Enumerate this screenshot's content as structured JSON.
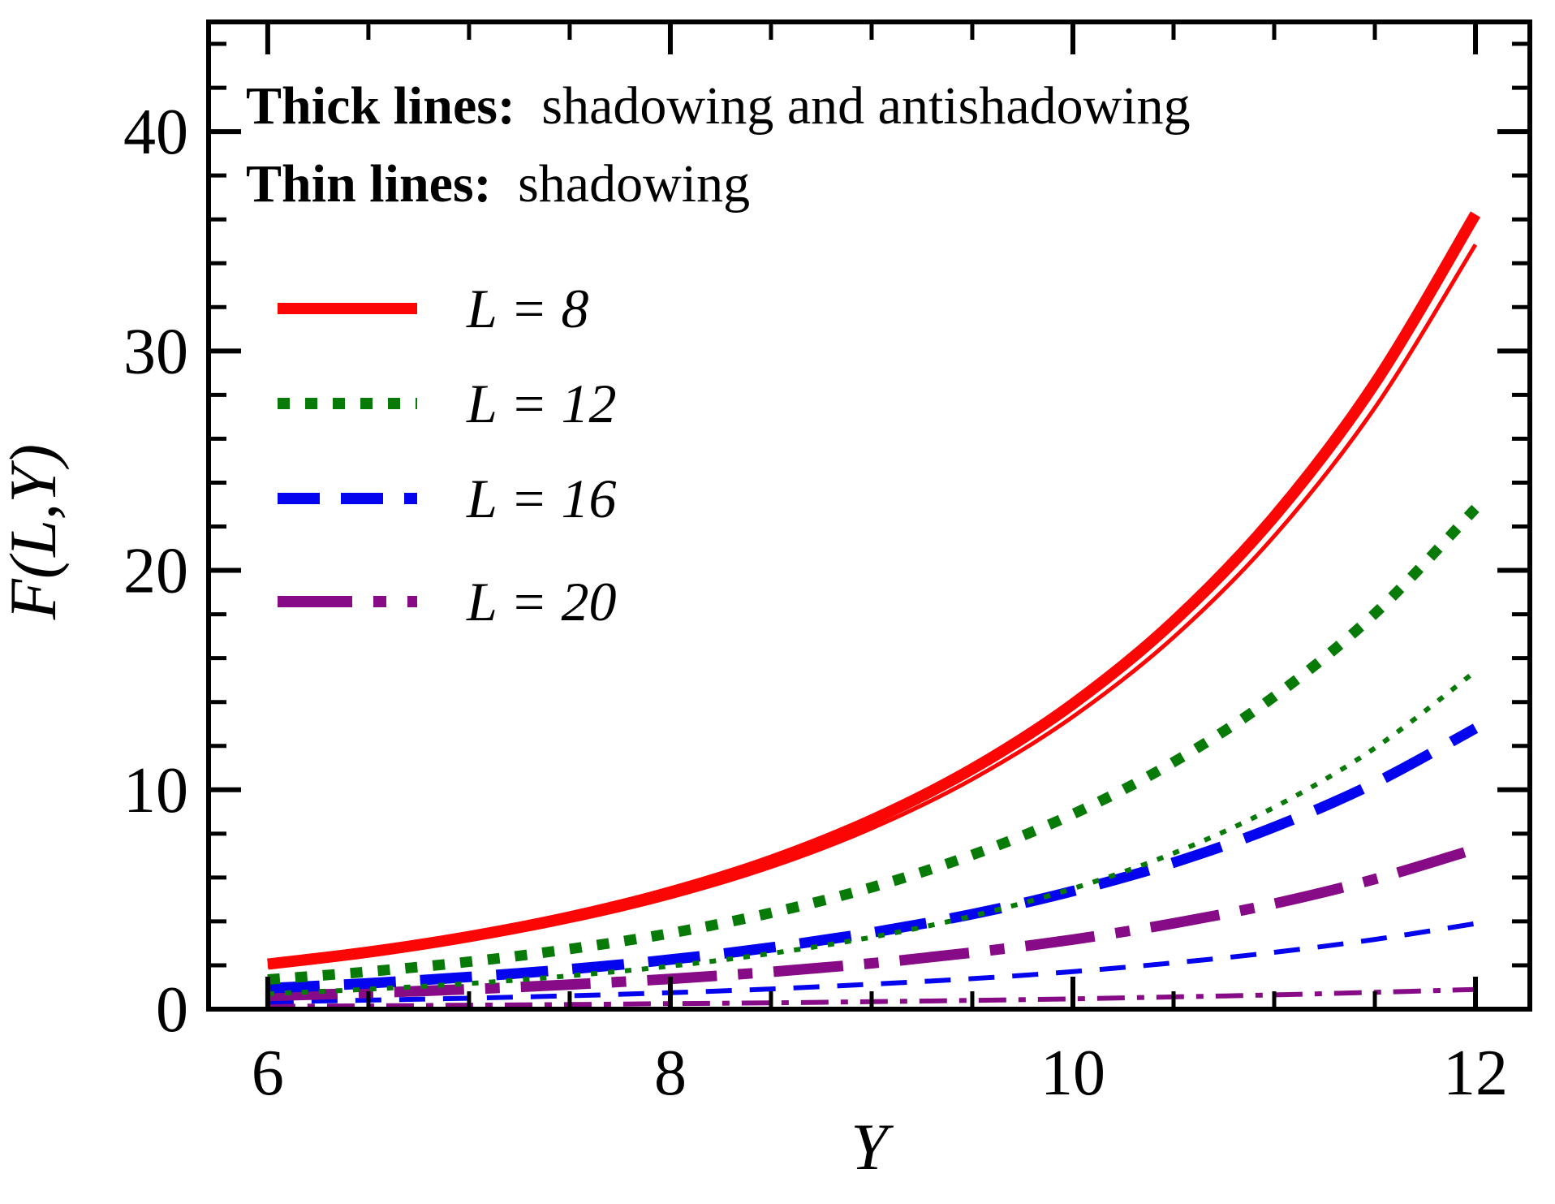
{
  "figure": {
    "annotations": {
      "line1_bold": "Thick lines:",
      "line1_rest": "shadowing and antishadowing",
      "line2_bold": "Thin lines:",
      "line2_rest": "shadowing"
    },
    "legend": {
      "position": "upper-left",
      "entries": [
        {
          "label": "L = 8",
          "color": "#fb0505",
          "dash": "",
          "width": 14
        },
        {
          "label": "L = 12",
          "color": "#077a07",
          "dash": "15 19",
          "width": 14
        },
        {
          "label": "L = 16",
          "color": "#0404ee",
          "dash": "52 26",
          "width": 14
        },
        {
          "label": "L = 20",
          "color": "#870b87",
          "dash": "92 26 16 26",
          "width": 14
        }
      ]
    }
  },
  "chart_data": {
    "type": "line",
    "title": "",
    "xlabel": "Y",
    "ylabel": "F(L,Y)",
    "xlim": [
      5.706,
      12.27
    ],
    "ylim": [
      0,
      45
    ],
    "grid": false,
    "x_major_ticks": [
      6,
      8,
      10,
      12
    ],
    "x_major_labels": [
      "6",
      "8",
      "10",
      "12"
    ],
    "x_minor_ticks": [
      6.5,
      7,
      7.5,
      8.5,
      9,
      9.5,
      10.5,
      11,
      11.5
    ],
    "y_major_ticks": [
      0,
      10,
      20,
      30,
      40
    ],
    "y_major_labels": [
      "0",
      "10",
      "20",
      "30",
      "40"
    ],
    "y_minor_ticks": [
      2,
      4,
      6,
      8,
      12,
      14,
      16,
      18,
      22,
      24,
      26,
      28,
      32,
      34,
      36,
      38,
      42,
      44
    ],
    "x": [
      6,
      6.5,
      7,
      7.5,
      8,
      8.5,
      9,
      9.5,
      10,
      10.5,
      11,
      11.5,
      12
    ],
    "series": [
      {
        "id": "L20-thin",
        "name": "L = 20 shadowing",
        "group": "thin",
        "color": "#870b87",
        "style": "dash-dot",
        "dash": "34 15 9 15",
        "width": 6,
        "values": [
          0.13,
          0.15,
          0.18,
          0.21,
          0.25,
          0.29,
          0.34,
          0.4,
          0.47,
          0.56,
          0.65,
          0.77,
          0.9
        ]
      },
      {
        "id": "L16-thin",
        "name": "L = 16 shadowing",
        "group": "thin",
        "color": "#0404ee",
        "style": "dashed",
        "dash": "32 22",
        "width": 6,
        "values": [
          0.33,
          0.41,
          0.5,
          0.61,
          0.75,
          0.92,
          1.14,
          1.39,
          1.71,
          2.11,
          2.59,
          3.18,
          3.9
        ]
      },
      {
        "id": "L20-thick",
        "name": "L = 20 shadowing and antishadowing",
        "group": "thick",
        "color": "#870b87",
        "style": "dash-dot",
        "dash": "86 26 18 26",
        "width": 13,
        "values": [
          0.6,
          0.74,
          0.91,
          1.12,
          1.38,
          1.7,
          2.09,
          2.58,
          3.17,
          3.91,
          4.81,
          5.93,
          7.3
        ]
      },
      {
        "id": "L16-thick",
        "name": "L = 16 shadowing and antishadowing",
        "group": "thick",
        "color": "#0404ee",
        "style": "dashed",
        "dash": "64 30",
        "width": 13,
        "values": [
          0.95,
          1.18,
          1.47,
          1.82,
          2.26,
          2.81,
          3.49,
          4.33,
          5.38,
          6.68,
          8.3,
          10.31,
          12.8
        ]
      },
      {
        "id": "L12-thin",
        "name": "L = 12 shadowing",
        "group": "thin",
        "color": "#077a07",
        "style": "dotted",
        "dash": "8 13",
        "width": 6,
        "values": [
          0.7,
          0.91,
          1.17,
          1.52,
          1.96,
          2.54,
          3.28,
          4.25,
          5.5,
          7.11,
          9.2,
          11.9,
          15.4
        ]
      },
      {
        "id": "L12-thick",
        "name": "L = 12 shadowing and antishadowing",
        "group": "thick",
        "color": "#077a07",
        "style": "dotted",
        "dash": "15 19",
        "width": 13,
        "values": [
          1.35,
          1.71,
          2.16,
          2.74,
          3.46,
          4.39,
          5.55,
          7.03,
          8.89,
          11.26,
          14.25,
          18.03,
          22.82
        ]
      },
      {
        "id": "L8-thin",
        "name": "L = 8 shadowing",
        "group": "thin",
        "color": "#fb0505",
        "style": "solid",
        "dash": "",
        "width": 5,
        "values": [
          1.95,
          2.48,
          3.15,
          4.01,
          5.1,
          6.48,
          8.24,
          10.48,
          13.33,
          16.95,
          21.56,
          27.41,
          34.85
        ]
      },
      {
        "id": "L8-thick",
        "name": "L = 8 shadowing and antishadowing",
        "group": "thick",
        "color": "#fb0505",
        "style": "solid",
        "dash": "",
        "width": 14,
        "values": [
          2.05,
          2.6,
          3.31,
          4.2,
          5.34,
          6.78,
          8.62,
          10.95,
          13.91,
          17.67,
          22.45,
          28.52,
          36.23
        ]
      }
    ]
  }
}
